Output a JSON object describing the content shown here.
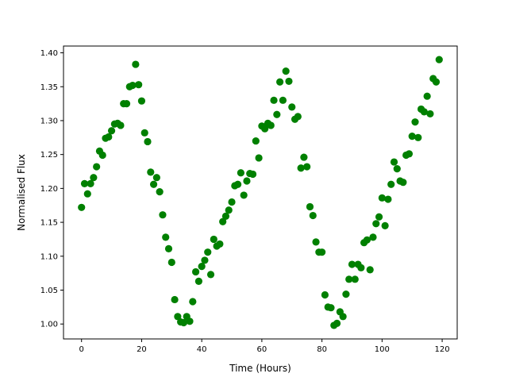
{
  "chart_data": {
    "type": "scatter",
    "xlabel": "Time (Hours)",
    "ylabel": "Normalised Flux",
    "xlim": [
      -6,
      125
    ],
    "ylim": [
      0.978,
      1.41
    ],
    "xticks": [
      0,
      20,
      40,
      60,
      80,
      100,
      120
    ],
    "xtick_labels": [
      "0",
      "20",
      "40",
      "60",
      "80",
      "100",
      "120"
    ],
    "yticks": [
      1.0,
      1.05,
      1.1,
      1.15,
      1.2,
      1.25,
      1.3,
      1.35,
      1.4
    ],
    "ytick_labels": [
      "1.00",
      "1.05",
      "1.10",
      "1.15",
      "1.20",
      "1.25",
      "1.30",
      "1.35",
      "1.40"
    ],
    "grid": false,
    "marker_color": "#008000",
    "series": [
      {
        "x": [
          0,
          1,
          2,
          3,
          4,
          5,
          6,
          7,
          8,
          9,
          10,
          11,
          12,
          13,
          14,
          15,
          16,
          17,
          18,
          19,
          20,
          21,
          22,
          23,
          24,
          25,
          26,
          27,
          28,
          29,
          30,
          31,
          32,
          33,
          34,
          35,
          36,
          37,
          38,
          39,
          40,
          41,
          42,
          43,
          44,
          45,
          46,
          47,
          48,
          49,
          50,
          51,
          52,
          53,
          54,
          55,
          56,
          57,
          58,
          59,
          60,
          61,
          62,
          63,
          64,
          65,
          66,
          67,
          68,
          69,
          70,
          71,
          72,
          73,
          74,
          75,
          76,
          77,
          78,
          79,
          80,
          81,
          82,
          83,
          84,
          85,
          86,
          87,
          88,
          89,
          90,
          91,
          92,
          93,
          94,
          95,
          96,
          97,
          98,
          99,
          100,
          101,
          102,
          103,
          104,
          105,
          106,
          107,
          108,
          109,
          110,
          111,
          112,
          113,
          114,
          115,
          116,
          117,
          118,
          119
        ],
        "y": [
          1.172,
          1.207,
          1.192,
          1.207,
          1.216,
          1.232,
          1.255,
          1.249,
          1.274,
          1.276,
          1.285,
          1.295,
          1.296,
          1.293,
          1.325,
          1.325,
          1.35,
          1.352,
          1.383,
          1.353,
          1.329,
          1.282,
          1.269,
          1.224,
          1.206,
          1.216,
          1.195,
          1.161,
          1.128,
          1.111,
          1.091,
          1.036,
          1.011,
          1.003,
          1.002,
          1.011,
          1.004,
          1.033,
          1.077,
          1.063,
          1.085,
          1.094,
          1.106,
          1.073,
          1.125,
          1.115,
          1.118,
          1.151,
          1.159,
          1.168,
          1.18,
          1.204,
          1.206,
          1.223,
          1.19,
          1.211,
          1.222,
          1.221,
          1.27,
          1.245,
          1.292,
          1.288,
          1.296,
          1.293,
          1.33,
          1.309,
          1.357,
          1.33,
          1.373,
          1.358,
          1.32,
          1.302,
          1.306,
          1.23,
          1.246,
          1.232,
          1.173,
          1.16,
          1.121,
          1.106,
          1.106,
          1.043,
          1.025,
          1.024,
          0.998,
          1.001,
          1.018,
          1.011,
          1.044,
          1.066,
          1.088,
          1.066,
          1.088,
          1.083,
          1.12,
          1.124,
          1.08,
          1.128,
          1.148,
          1.158,
          1.186,
          1.145,
          1.184,
          1.206,
          1.239,
          1.229,
          1.211,
          1.209,
          1.249,
          1.251,
          1.277,
          1.298,
          1.275,
          1.317,
          1.313,
          1.336,
          1.31,
          1.362,
          1.357,
          1.39
        ]
      }
    ]
  }
}
